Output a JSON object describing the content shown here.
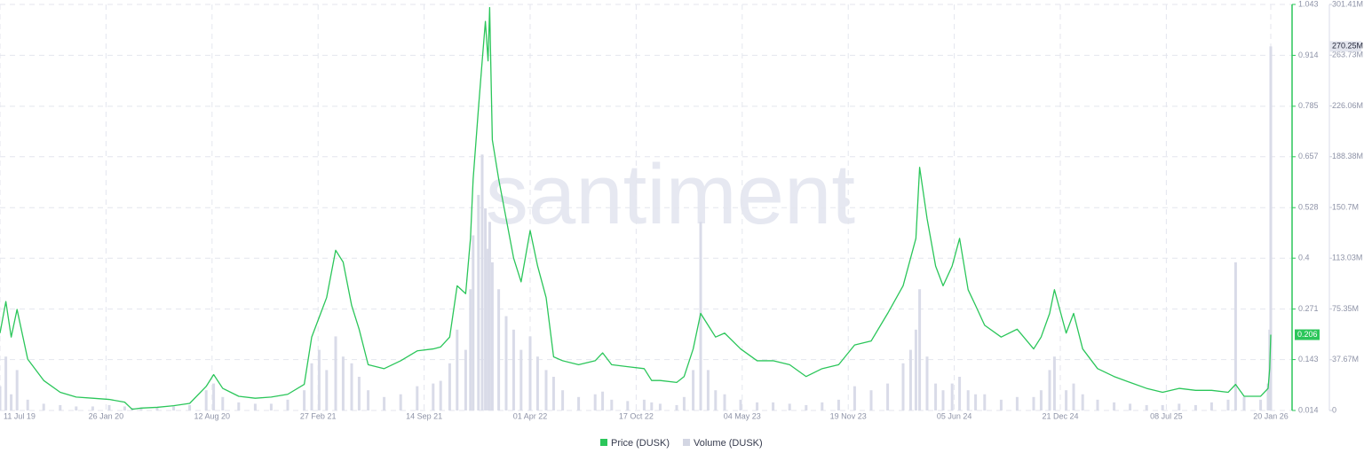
{
  "chart_data": {
    "type": "line",
    "watermark": "santiment",
    "x": [
      "11 Jul 19",
      "22 Jul 19",
      "01 Aug 19",
      "12 Aug 19",
      "01 Sep 19",
      "01 Oct 19",
      "01 Nov 19",
      "01 Dec 19",
      "01 Jan 20",
      "01 Feb 20",
      "01 Mar 20",
      "15 Mar 20",
      "01 Apr 20",
      "01 May 20",
      "01 Jun 20",
      "01 Jul 20",
      "01 Aug 20",
      "15 Aug 20",
      "01 Sep 20",
      "01 Oct 20",
      "01 Nov 20",
      "01 Dec 20",
      "01 Jan 21",
      "01 Feb 21",
      "15 Feb 21",
      "01 Mar 21",
      "15 Mar 21",
      "01 Apr 21",
      "15 Apr 21",
      "01 May 21",
      "15 May 21",
      "01 Jun 21",
      "01 Jul 21",
      "01 Aug 21",
      "01 Sep 21",
      "01 Oct 21",
      "15 Oct 21",
      "01 Nov 21",
      "15 Nov 21",
      "01 Dec 21",
      "10 Dec 21",
      "15 Dec 21",
      "25 Dec 21",
      "01 Jan 22",
      "07 Jan 22",
      "12 Jan 22",
      "15 Jan 22",
      "20 Jan 22",
      "01 Feb 22",
      "15 Feb 22",
      "01 Mar 22",
      "15 Mar 22",
      "01 Apr 22",
      "15 Apr 22",
      "01 May 22",
      "15 May 22",
      "01 Jun 22",
      "01 Jul 22",
      "01 Aug 22",
      "15 Aug 22",
      "01 Sep 22",
      "01 Oct 22",
      "01 Nov 22",
      "15 Nov 22",
      "01 Dec 22",
      "01 Jan 23",
      "15 Jan 23",
      "01 Feb 23",
      "15 Feb 23",
      "01 Mar 23",
      "15 Mar 23",
      "01 Apr 23",
      "01 May 23",
      "01 Jun 23",
      "01 Jul 23",
      "01 Aug 23",
      "01 Sep 23",
      "01 Oct 23",
      "01 Nov 23",
      "01 Dec 23",
      "01 Jan 24",
      "01 Feb 24",
      "01 Mar 24",
      "15 Mar 24",
      "25 Mar 24",
      "01 Apr 24",
      "15 Apr 24",
      "01 May 24",
      "15 May 24",
      "01 Jun 24",
      "15 Jun 24",
      "01 Jul 24",
      "15 Jul 24",
      "01 Aug 24",
      "01 Sep 24",
      "01 Oct 24",
      "01 Nov 24",
      "15 Nov 24",
      "01 Dec 24",
      "10 Dec 24",
      "01 Jan 25",
      "15 Jan 25",
      "01 Feb 25",
      "01 Mar 25",
      "01 Apr 25",
      "01 May 25",
      "01 Jun 25",
      "01 Jul 25",
      "01 Aug 25",
      "01 Sep 25",
      "01 Oct 25",
      "01 Nov 25",
      "15 Nov 25",
      "01 Dec 25",
      "01 Jan 26",
      "15 Jan 26",
      "18 Jan 26",
      "20 Jan 26"
    ],
    "series": [
      {
        "name": "Price (DUSK)",
        "type": "line",
        "color": "#2bc65a",
        "axis": "y",
        "values": [
          0.21,
          0.29,
          0.2,
          0.27,
          0.144,
          0.09,
          0.06,
          0.048,
          0.045,
          0.042,
          0.035,
          0.017,
          0.02,
          0.022,
          0.026,
          0.032,
          0.075,
          0.105,
          0.07,
          0.05,
          0.045,
          0.048,
          0.055,
          0.08,
          0.2,
          0.25,
          0.3,
          0.42,
          0.39,
          0.28,
          0.22,
          0.13,
          0.12,
          0.14,
          0.165,
          0.17,
          0.175,
          0.2,
          0.33,
          0.31,
          0.45,
          0.6,
          0.78,
          0.9,
          1.0,
          0.9,
          1.035,
          0.7,
          0.6,
          0.5,
          0.4,
          0.34,
          0.47,
          0.38,
          0.3,
          0.15,
          0.14,
          0.13,
          0.14,
          0.16,
          0.13,
          0.125,
          0.12,
          0.09,
          0.09,
          0.085,
          0.1,
          0.17,
          0.26,
          0.23,
          0.2,
          0.21,
          0.17,
          0.14,
          0.14,
          0.13,
          0.1,
          0.12,
          0.13,
          0.18,
          0.19,
          0.26,
          0.33,
          0.4,
          0.45,
          0.63,
          0.5,
          0.38,
          0.33,
          0.38,
          0.45,
          0.32,
          0.28,
          0.23,
          0.2,
          0.22,
          0.17,
          0.2,
          0.26,
          0.32,
          0.21,
          0.26,
          0.17,
          0.12,
          0.1,
          0.085,
          0.07,
          0.06,
          0.07,
          0.065,
          0.065,
          0.06,
          0.08,
          0.05,
          0.05,
          0.07,
          0.12,
          0.206
        ]
      },
      {
        "name": "Volume (DUSK)",
        "type": "bar",
        "color": "#d9dbe8",
        "axis": "y2",
        "last_label": "270.25M",
        "values": [
          18000000,
          40000000,
          12000000,
          30000000,
          8000000,
          5000000,
          4000000,
          3000000,
          3000000,
          4000000,
          3000000,
          2000000,
          2000000,
          2000000,
          3000000,
          4000000,
          15000000,
          20000000,
          10000000,
          6000000,
          5000000,
          5000000,
          8000000,
          15000000,
          35000000,
          45000000,
          30000000,
          55000000,
          40000000,
          35000000,
          25000000,
          15000000,
          10000000,
          12000000,
          18000000,
          20000000,
          22000000,
          35000000,
          60000000,
          45000000,
          90000000,
          130000000,
          160000000,
          190000000,
          150000000,
          120000000,
          140000000,
          110000000,
          90000000,
          70000000,
          60000000,
          45000000,
          55000000,
          40000000,
          30000000,
          25000000,
          15000000,
          10000000,
          12000000,
          14000000,
          8000000,
          7000000,
          8000000,
          6000000,
          5000000,
          4000000,
          10000000,
          30000000,
          140000000,
          30000000,
          15000000,
          12000000,
          8000000,
          6000000,
          6000000,
          5000000,
          4000000,
          6000000,
          8000000,
          18000000,
          15000000,
          20000000,
          35000000,
          45000000,
          60000000,
          90000000,
          40000000,
          20000000,
          15000000,
          20000000,
          25000000,
          15000000,
          12000000,
          12000000,
          8000000,
          10000000,
          10000000,
          15000000,
          30000000,
          40000000,
          15000000,
          20000000,
          12000000,
          8000000,
          6000000,
          5000000,
          4000000,
          4000000,
          5000000,
          4000000,
          6000000,
          8000000,
          110000000,
          10000000,
          8000000,
          20000000,
          60000000,
          270250000
        ]
      }
    ],
    "xlim": [
      "11 Jul 19",
      "01 Mar 26"
    ],
    "xticks": [
      "11 Jul 19",
      "26 Jan 20",
      "12 Aug 20",
      "27 Feb 21",
      "14 Sep 21",
      "01 Apr 22",
      "17 Oct 22",
      "04 May 23",
      "19 Nov 23",
      "05 Jun 24",
      "21 Dec 24",
      "08 Jul 25",
      "20 Jan 26"
    ],
    "ylim": [
      0.014,
      1.043
    ],
    "yticks": [
      0.014,
      0.143,
      0.271,
      0.4,
      0.528,
      0.657,
      0.785,
      0.914,
      1.043
    ],
    "y2lim": [
      0,
      301410000
    ],
    "y2ticks": [
      0,
      {
        "value": 37670000,
        "label": "37.67M"
      },
      {
        "value": 75350000,
        "label": "75.35M"
      },
      {
        "value": 113030000,
        "label": "113.03M"
      },
      {
        "value": 150700000,
        "label": "150.7M"
      },
      {
        "value": 188380000,
        "label": "188.38M"
      },
      {
        "value": 226060000,
        "label": "226.06M"
      },
      {
        "value": 263730000,
        "label": "263.73M"
      },
      {
        "value": 301410000,
        "label": "301.41M"
      }
    ],
    "grid": true,
    "legend": "bottom"
  }
}
